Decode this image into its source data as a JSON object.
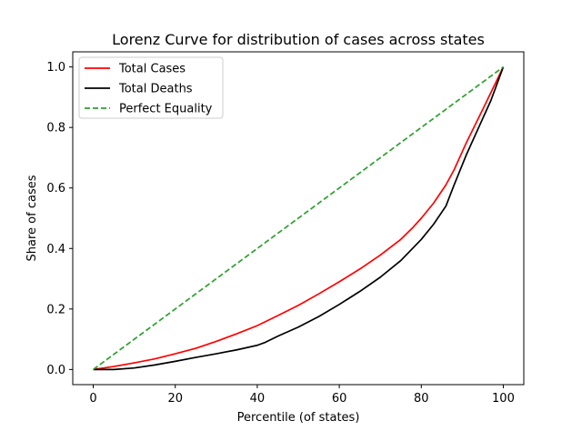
{
  "chart_data": {
    "type": "line",
    "title": "Lorenz Curve for distribution of cases across states",
    "xlabel": "Percentile (of states)",
    "ylabel": "Share of cases",
    "xlim": [
      -5,
      105
    ],
    "ylim": [
      -0.05,
      1.05
    ],
    "xticks": [
      0,
      20,
      40,
      60,
      80,
      100
    ],
    "xtick_labels": [
      "0",
      "20",
      "40",
      "60",
      "80",
      "100"
    ],
    "yticks": [
      0.0,
      0.2,
      0.4,
      0.6,
      0.8,
      1.0
    ],
    "ytick_labels": [
      "0.0",
      "0.2",
      "0.4",
      "0.6",
      "0.8",
      "1.0"
    ],
    "grid": false,
    "legend_position": "top-left",
    "series": [
      {
        "name": "Total Cases",
        "color": "#ff0000",
        "style": "solid",
        "x": [
          0,
          5,
          10,
          15,
          20,
          25,
          30,
          35,
          40,
          45,
          50,
          55,
          60,
          65,
          70,
          75,
          78,
          80,
          83,
          86,
          88,
          91,
          95,
          100
        ],
        "y": [
          0.0,
          0.01,
          0.022,
          0.035,
          0.052,
          0.07,
          0.093,
          0.118,
          0.145,
          0.178,
          0.212,
          0.25,
          0.29,
          0.332,
          0.378,
          0.43,
          0.47,
          0.5,
          0.55,
          0.61,
          0.66,
          0.75,
          0.86,
          1.0
        ]
      },
      {
        "name": "Total Deaths",
        "color": "#000000",
        "style": "solid",
        "x": [
          0,
          5,
          10,
          15,
          20,
          25,
          30,
          35,
          40,
          42,
          45,
          50,
          55,
          60,
          65,
          70,
          75,
          80,
          83,
          86,
          88,
          91,
          95,
          97,
          100
        ],
        "y": [
          0.0,
          0.0,
          0.005,
          0.015,
          0.027,
          0.04,
          0.052,
          0.065,
          0.08,
          0.09,
          0.11,
          0.14,
          0.175,
          0.215,
          0.258,
          0.305,
          0.36,
          0.43,
          0.48,
          0.54,
          0.61,
          0.71,
          0.83,
          0.89,
          1.0
        ]
      },
      {
        "name": "Perfect Equality",
        "color": "#2ca02c",
        "style": "dashed",
        "x": [
          0,
          100
        ],
        "y": [
          0.0,
          1.0
        ]
      }
    ]
  }
}
